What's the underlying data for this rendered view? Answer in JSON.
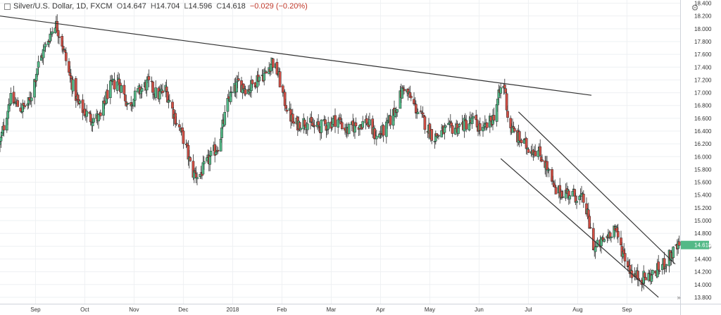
{
  "header": {
    "symbol": "Silver/U.S. Dollar, 1D, FXCM",
    "open_label": "O",
    "open": "14.647",
    "high_label": "H",
    "high": "14.704",
    "low_label": "L",
    "low": "14.596",
    "close_label": "C",
    "close": "14.618",
    "change": "−0.029 (−0.20%)"
  },
  "chart_data": {
    "type": "candlestick",
    "symbol": "Silver/U.S. Dollar",
    "interval": "1D",
    "source": "FXCM",
    "ylim": [
      13.7,
      18.45
    ],
    "y_ticks": [
      "18.400",
      "18.200",
      "18.000",
      "17.800",
      "17.600",
      "17.400",
      "17.200",
      "17.000",
      "16.800",
      "16.600",
      "16.400",
      "16.200",
      "16.000",
      "15.800",
      "15.600",
      "15.400",
      "15.200",
      "15.000",
      "14.800",
      "14.600",
      "14.400",
      "14.200",
      "14.000",
      "13.800"
    ],
    "x_ticks": [
      "Sep",
      "Oct",
      "Nov",
      "Dec",
      "2018",
      "Feb",
      "Mar",
      "Apr",
      "May",
      "Jun",
      "Jul",
      "Aug",
      "Sep"
    ],
    "x_tick_days": [
      36,
      86,
      136,
      186,
      236,
      286,
      336,
      386,
      436,
      486,
      536,
      586,
      636
    ],
    "day_count": 690,
    "last_price": 14.618,
    "up_color": "#53b987",
    "down_color": "#d24f45",
    "anchor_prices": [
      [
        0,
        16.2
      ],
      [
        10,
        16.9
      ],
      [
        22,
        16.75
      ],
      [
        30,
        16.85
      ],
      [
        38,
        17.4
      ],
      [
        48,
        17.8
      ],
      [
        56,
        18.1
      ],
      [
        62,
        17.85
      ],
      [
        70,
        17.3
      ],
      [
        80,
        16.8
      ],
      [
        92,
        16.6
      ],
      [
        102,
        16.6
      ],
      [
        110,
        17.05
      ],
      [
        120,
        17.2
      ],
      [
        130,
        16.8
      ],
      [
        140,
        17.0
      ],
      [
        150,
        17.15
      ],
      [
        160,
        16.95
      ],
      [
        168,
        17.05
      ],
      [
        178,
        16.6
      ],
      [
        188,
        16.2
      ],
      [
        195,
        15.75
      ],
      [
        202,
        15.7
      ],
      [
        212,
        15.95
      ],
      [
        222,
        16.2
      ],
      [
        232,
        16.9
      ],
      [
        242,
        17.15
      ],
      [
        252,
        17.05
      ],
      [
        262,
        17.25
      ],
      [
        270,
        17.3
      ],
      [
        276,
        17.5
      ],
      [
        282,
        17.3
      ],
      [
        288,
        16.9
      ],
      [
        298,
        16.5
      ],
      [
        310,
        16.55
      ],
      [
        320,
        16.45
      ],
      [
        332,
        16.5
      ],
      [
        342,
        16.6
      ],
      [
        352,
        16.4
      ],
      [
        362,
        16.5
      ],
      [
        372,
        16.55
      ],
      [
        382,
        16.3
      ],
      [
        392,
        16.45
      ],
      [
        400,
        16.7
      ],
      [
        410,
        17.1
      ],
      [
        420,
        16.8
      ],
      [
        430,
        16.55
      ],
      [
        440,
        16.3
      ],
      [
        450,
        16.4
      ],
      [
        460,
        16.45
      ],
      [
        470,
        16.5
      ],
      [
        480,
        16.55
      ],
      [
        490,
        16.4
      ],
      [
        500,
        16.6
      ],
      [
        508,
        17.05
      ],
      [
        512,
        17.1
      ],
      [
        516,
        16.5
      ],
      [
        525,
        16.3
      ],
      [
        535,
        16.15
      ],
      [
        545,
        16.1
      ],
      [
        553,
        15.9
      ],
      [
        563,
        15.45
      ],
      [
        573,
        15.45
      ],
      [
        583,
        15.4
      ],
      [
        593,
        15.3
      ],
      [
        603,
        14.55
      ],
      [
        613,
        14.7
      ],
      [
        623,
        14.9
      ],
      [
        632,
        14.5
      ],
      [
        642,
        14.15
      ],
      [
        652,
        14.1
      ],
      [
        662,
        14.15
      ],
      [
        672,
        14.3
      ],
      [
        680,
        14.45
      ],
      [
        690,
        14.62
      ]
    ],
    "trendlines": [
      {
        "from": [
          0,
          18.2
        ],
        "to": [
          600,
          16.96
        ]
      },
      {
        "from": [
          526,
          16.7
        ],
        "to": [
          685,
          14.32
        ]
      },
      {
        "from": [
          508,
          15.97
        ],
        "to": [
          668,
          13.8
        ]
      }
    ]
  }
}
